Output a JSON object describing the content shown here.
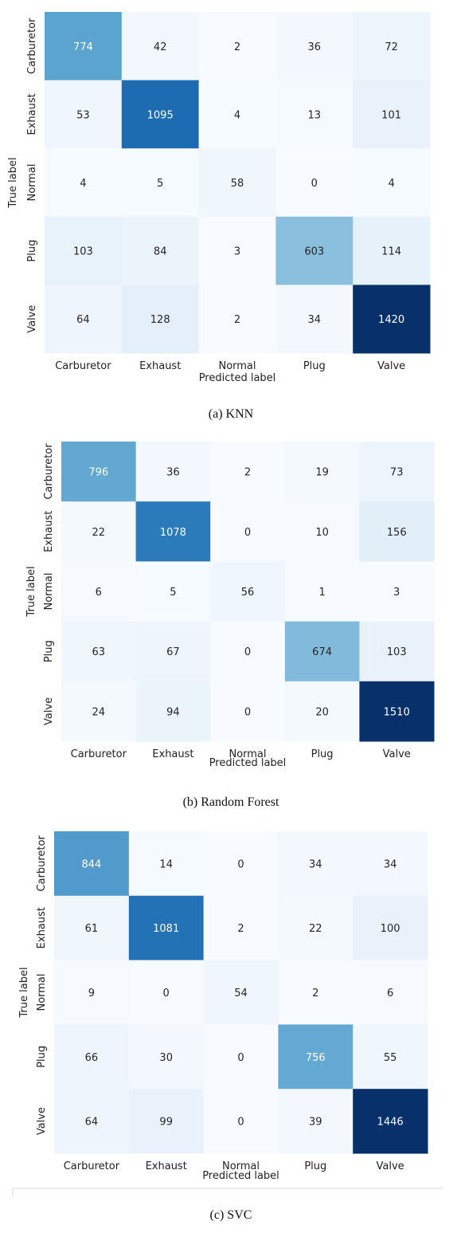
{
  "chart_data": [
    {
      "type": "heatmap",
      "caption": "(a) KNN",
      "xlabel": "Predicted label",
      "ylabel": "True label",
      "x_categories": [
        "Carburetor",
        "Exhaust",
        "Normal",
        "Plug",
        "Valve"
      ],
      "y_categories": [
        "Carburetor",
        "Exhaust",
        "Normal",
        "Plug",
        "Valve"
      ],
      "values": [
        [
          774,
          42,
          2,
          36,
          72
        ],
        [
          53,
          1095,
          4,
          13,
          101
        ],
        [
          4,
          5,
          58,
          0,
          4
        ],
        [
          103,
          84,
          3,
          603,
          114
        ],
        [
          64,
          128,
          2,
          34,
          1420
        ]
      ],
      "colormap": "Blues",
      "colorbar": false
    },
    {
      "type": "heatmap",
      "caption": "(b) Random Forest",
      "xlabel": "Predicted label",
      "ylabel": "True label",
      "x_categories": [
        "Carburetor",
        "Exhaust",
        "Normal",
        "Plug",
        "Valve"
      ],
      "y_categories": [
        "Carburetor",
        "Exhaust",
        "Normal",
        "Plug",
        "Valve"
      ],
      "values": [
        [
          796,
          36,
          2,
          19,
          73
        ],
        [
          22,
          1078,
          0,
          10,
          156
        ],
        [
          6,
          5,
          56,
          1,
          3
        ],
        [
          63,
          67,
          0,
          674,
          103
        ],
        [
          24,
          94,
          0,
          20,
          1510
        ]
      ],
      "colormap": "Blues",
      "colorbar": false
    },
    {
      "type": "heatmap",
      "caption": "(c) SVC",
      "xlabel": "Predicted label",
      "ylabel": "True label",
      "x_categories": [
        "Carburetor",
        "Exhaust",
        "Normal",
        "Plug",
        "Valve"
      ],
      "y_categories": [
        "Carburetor",
        "Exhaust",
        "Normal",
        "Plug",
        "Valve"
      ],
      "values": [
        [
          844,
          14,
          0,
          34,
          34
        ],
        [
          61,
          1081,
          2,
          22,
          100
        ],
        [
          9,
          0,
          54,
          2,
          6
        ],
        [
          66,
          30,
          0,
          756,
          55
        ],
        [
          64,
          99,
          0,
          39,
          1446
        ]
      ],
      "colormap": "Blues",
      "colorbar": false
    }
  ]
}
